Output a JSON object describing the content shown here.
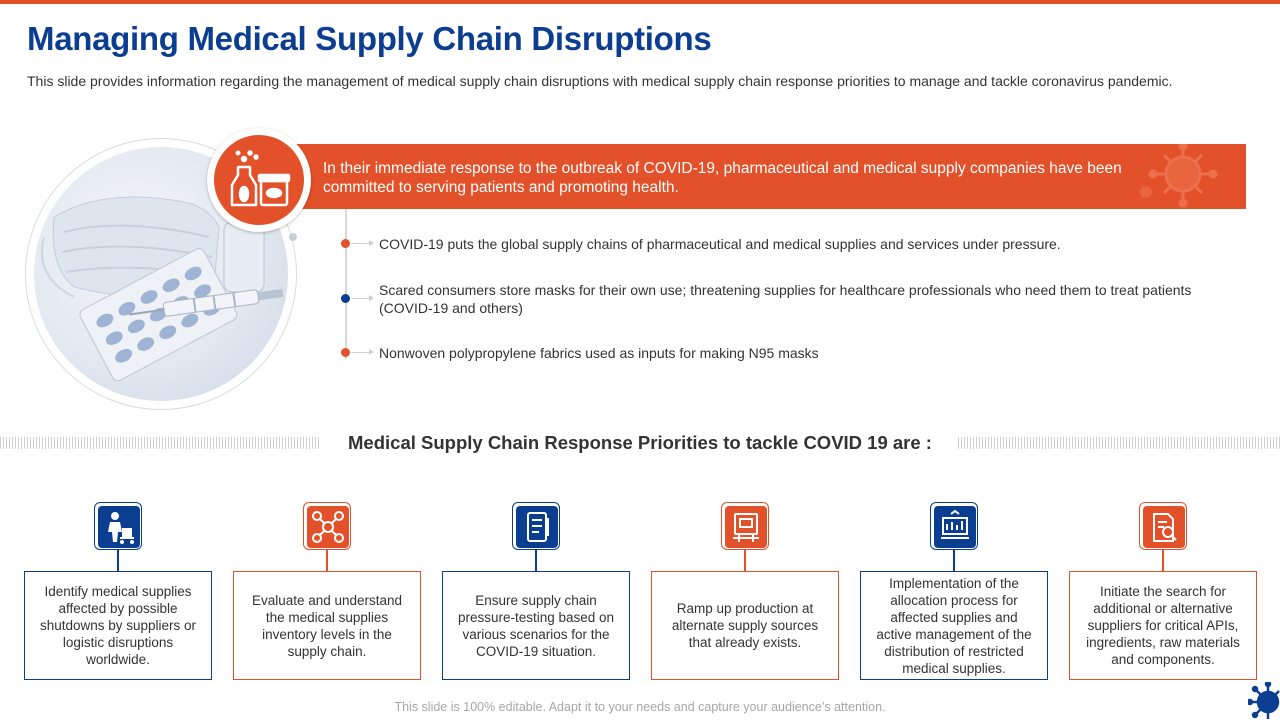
{
  "header": {
    "title": "Managing Medical Supply Chain Disruptions",
    "subtitle": "This slide provides information regarding the management of medical supply chain disruptions with medical supply chain response priorities to manage and tackle coronavirus pandemic."
  },
  "banner": {
    "text": "In their immediate response to the outbreak of COVID-19, pharmaceutical and medical supply companies have been committed to serving patients and promoting health.",
    "icon": "medicine-bottle-icon"
  },
  "bullets": [
    {
      "text": "COVID-19 puts the global supply chains of pharmaceutical and medical supplies and services under pressure.",
      "color": "#e2512a"
    },
    {
      "text": "Scared consumers store masks for their own use; threatening supplies for healthcare professionals who need them to treat patients (COVID-19 and others)",
      "color": "#0b3e91"
    },
    {
      "text": "Nonwoven polypropylene fabrics used as inputs for making N95 masks",
      "color": "#e2512a"
    }
  ],
  "section": {
    "heading": "Medical Supply Chain Response Priorities to tackle COVID 19 are :"
  },
  "priorities": [
    {
      "text": "Identify medical supplies affected by possible shutdowns by suppliers or logistic disruptions worldwide.",
      "icon": "delivery-worker-icon",
      "theme": "blue"
    },
    {
      "text": "Evaluate and understand the medical supplies inventory levels in the supply chain.",
      "icon": "network-nodes-icon",
      "theme": "orange"
    },
    {
      "text": "Ensure supply chain pressure-testing based on various scenarios for the COVID-19 situation.",
      "icon": "checklist-document-icon",
      "theme": "blue"
    },
    {
      "text": "Ramp up production at alternate supply sources that already exists.",
      "icon": "production-machine-icon",
      "theme": "orange"
    },
    {
      "text": "Implementation of the allocation process for affected supplies and active management of the distribution of restricted medical supplies.",
      "icon": "distribution-chart-icon",
      "theme": "blue"
    },
    {
      "text": "Initiate the search for additional or alternative suppliers for critical APIs, ingredients, raw materials and components.",
      "icon": "document-search-icon",
      "theme": "orange"
    }
  ],
  "footer": {
    "text": "This slide is 100% editable. Adapt it to your needs and capture your audience’s attention."
  },
  "colors": {
    "primary_blue": "#0b3e91",
    "accent_orange": "#e2512a"
  }
}
